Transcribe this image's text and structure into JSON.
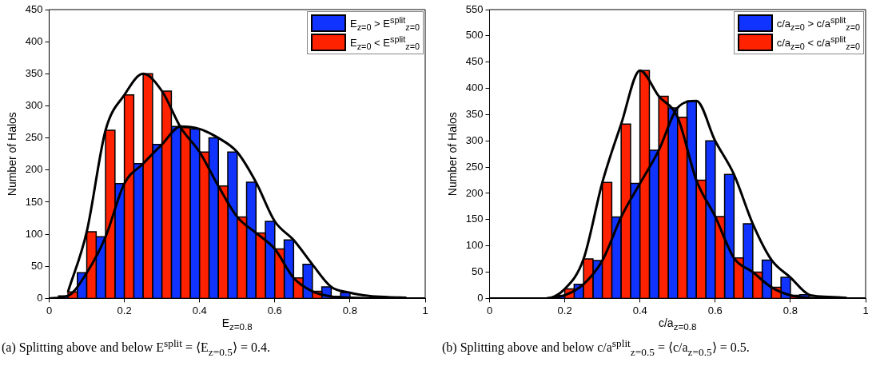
{
  "chart_data": [
    {
      "type": "histogram",
      "xlabel": "E$_{z=0.8}$",
      "ylabel": "Number of Halos",
      "xlim": [
        0,
        1
      ],
      "xticks": [
        0,
        0.2,
        0.4,
        0.6,
        0.8,
        1
      ],
      "ylim": [
        0,
        450
      ],
      "yticks": [
        0,
        50,
        100,
        150,
        200,
        250,
        300,
        350,
        400,
        450
      ],
      "legend": "top right",
      "bins": [
        0.025,
        0.075,
        0.125,
        0.175,
        0.225,
        0.275,
        0.325,
        0.375,
        0.425,
        0.475,
        0.525,
        0.575,
        0.625,
        0.675,
        0.725,
        0.775,
        0.825
      ],
      "series": [
        {
          "name": "E$_{z=0}$ > E$^{split}$$_{z=0}$",
          "color": "#1133ff",
          "values": [
            4,
            40,
            96,
            179,
            210,
            240,
            268,
            264,
            250,
            228,
            181,
            120,
            91,
            53,
            18,
            9
          ]
        },
        {
          "name": "E$_{z=0}$ < E$^{split}$$_{z=0}$",
          "color": "#ff2200",
          "values": [
            10,
            104,
            262,
            317,
            350,
            323,
            266,
            228,
            175,
            127,
            102,
            77,
            32,
            11,
            3,
            1
          ]
        },
        {
          "type": "line",
          "color": "#000000",
          "x": [
            0,
            0.05,
            0.1,
            0.15,
            0.2,
            0.25,
            0.3,
            0.35,
            0.4,
            0.45,
            0.5,
            0.55,
            0.6,
            0.65,
            0.7,
            0.75,
            0.8,
            0.85,
            0.9,
            0.95
          ],
          "values": [
            0,
            4,
            40,
            96,
            179,
            210,
            240,
            268,
            264,
            250,
            228,
            181,
            120,
            91,
            53,
            18,
            9,
            4,
            2,
            1
          ]
        },
        {
          "type": "line",
          "color": "#000000",
          "x": [
            0.05,
            0.1,
            0.15,
            0.2,
            0.25,
            0.3,
            0.35,
            0.4,
            0.45,
            0.5,
            0.55,
            0.6,
            0.65,
            0.7,
            0.75,
            0.8,
            0.85,
            0.9,
            0.95,
            1
          ],
          "values": [
            10,
            104,
            262,
            317,
            350,
            323,
            266,
            228,
            175,
            127,
            102,
            77,
            32,
            11,
            3,
            1,
            0,
            0,
            0,
            0
          ]
        }
      ],
      "annotations": [
        "(a) Splitting above and below E$^{split}$ = ⟨E$_{z=0.5}$⟩ = 0.4."
      ]
    },
    {
      "type": "histogram",
      "xlabel": "c/a$_{z=0.8}$",
      "ylabel": "Number of Halos",
      "xlim": [
        0,
        1
      ],
      "xticks": [
        0,
        0.2,
        0.4,
        0.6,
        0.8,
        1
      ],
      "ylim": [
        0,
        550
      ],
      "yticks": [
        0,
        50,
        100,
        150,
        200,
        250,
        300,
        350,
        400,
        450,
        500,
        550
      ],
      "legend": "top right",
      "bins": [
        0.175,
        0.225,
        0.275,
        0.325,
        0.375,
        0.425,
        0.475,
        0.525,
        0.575,
        0.625,
        0.675,
        0.725,
        0.775,
        0.825,
        0.875
      ],
      "series": [
        {
          "name": "c/a$_{z=0}$ > c/a$^{split}$$_{z=0}$",
          "color": "#1133ff",
          "values": [
            6,
            27,
            72,
            155,
            219,
            282,
            363,
            376,
            300,
            236,
            142,
            73,
            40,
            7
          ]
        },
        {
          "name": "c/a$_{z=0}$ < c/a$^{split}$$_{z=0}$",
          "color": "#ff2200",
          "values": [
            18,
            75,
            221,
            332,
            434,
            385,
            345,
            225,
            156,
            77,
            50,
            21,
            6,
            1
          ]
        },
        {
          "type": "line",
          "color": "#000000",
          "x": [
            0,
            0.05,
            0.1,
            0.15,
            0.2,
            0.25,
            0.3,
            0.35,
            0.4,
            0.45,
            0.5,
            0.55,
            0.6,
            0.65,
            0.7,
            0.75,
            0.8,
            0.85,
            0.9,
            0.95
          ],
          "values": [
            0,
            0,
            0,
            0,
            6,
            27,
            72,
            155,
            219,
            282,
            363,
            376,
            300,
            236,
            142,
            73,
            40,
            7,
            3,
            1
          ]
        },
        {
          "type": "line",
          "color": "#000000",
          "x": [
            0.05,
            0.1,
            0.15,
            0.2,
            0.25,
            0.3,
            0.35,
            0.4,
            0.45,
            0.5,
            0.55,
            0.6,
            0.65,
            0.7,
            0.75,
            0.8,
            0.85,
            0.9,
            0.95,
            1
          ],
          "values": [
            0,
            0,
            0,
            18,
            75,
            221,
            332,
            434,
            385,
            345,
            225,
            156,
            77,
            50,
            21,
            6,
            1,
            0,
            0,
            0
          ]
        }
      ],
      "annotations": [
        "(b) Splitting above and below c/a$^{split}$$_{z=0.5}$ = ⟨c/a$_{z=0.5}$⟩ = 0.5."
      ]
    }
  ]
}
